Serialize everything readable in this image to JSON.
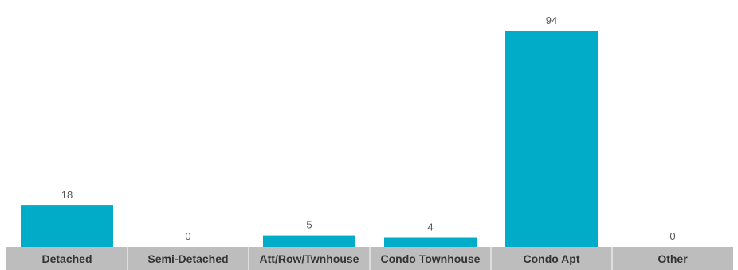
{
  "chart_data": {
    "type": "bar",
    "categories": [
      "Detached",
      "Semi-Detached",
      "Att/Row/Twnhouse",
      "Condo Townhouse",
      "Condo Apt",
      "Other"
    ],
    "values": [
      18,
      0,
      5,
      4,
      94,
      0
    ],
    "value_labels": [
      "18",
      "0",
      "5",
      "4",
      "94",
      "0"
    ],
    "title": "",
    "xlabel": "",
    "ylabel": "",
    "ylim": [
      0,
      94
    ],
    "grid": false,
    "legend": "none",
    "colors": {
      "bar": "#00acc8",
      "axis_strip": "#bdbdbd",
      "category_text": "#333333",
      "value_text": "#555555"
    }
  }
}
